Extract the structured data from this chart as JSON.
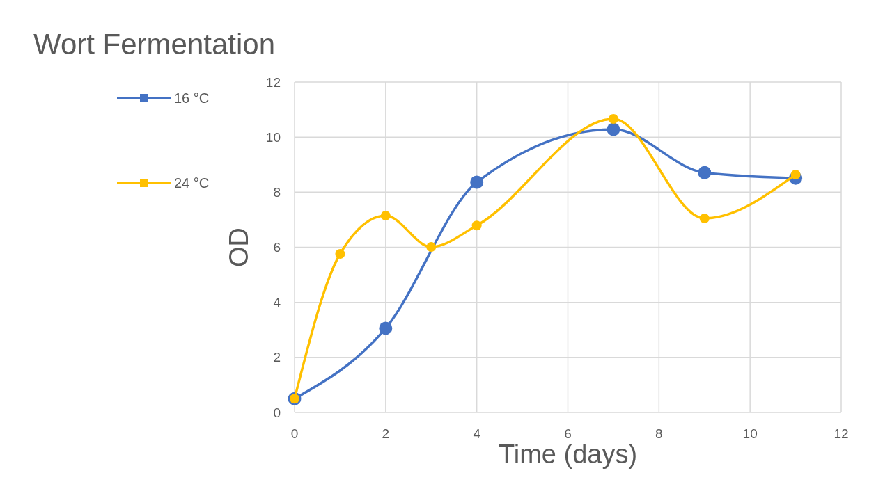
{
  "chart_data": {
    "type": "line",
    "title": "Wort Fermentation",
    "xlabel": "Time (days)",
    "ylabel": "OD",
    "xlim": [
      0,
      12
    ],
    "xticks": [
      0,
      2,
      4,
      6,
      8,
      10,
      12
    ],
    "ylim": [
      0,
      12
    ],
    "yticks": [
      0,
      2,
      4,
      6,
      8,
      10,
      12
    ],
    "grid": true,
    "legend": "left",
    "marker": "circle",
    "line_style": "solid",
    "series": [
      {
        "name": "16 °C",
        "color": "#4472c4",
        "x": [
          0,
          2,
          4,
          7,
          9,
          11
        ],
        "values": [
          0.5,
          3.06,
          8.36,
          10.28,
          8.71,
          8.51
        ]
      },
      {
        "name": "24 °C",
        "color": "#ffc000",
        "x": [
          0,
          1,
          2,
          3,
          4,
          7,
          9,
          11
        ],
        "values": [
          0.5,
          5.76,
          7.15,
          6.01,
          6.79,
          10.66,
          7.05,
          8.64
        ]
      }
    ]
  }
}
